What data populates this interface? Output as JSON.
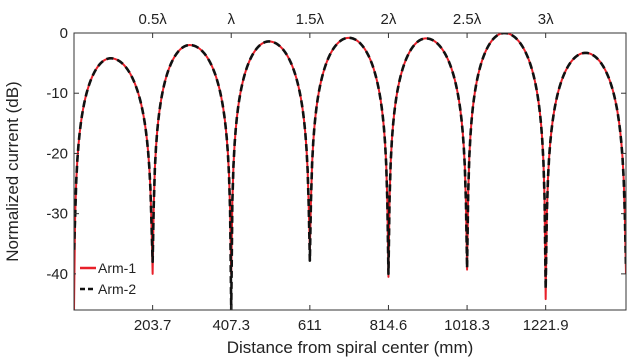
{
  "chart_data": {
    "type": "line",
    "xlabel": "Distance from spiral center (mm)",
    "ylabel": "Normalized current (dB)",
    "xlim": [
      0,
      1430
    ],
    "ylim": [
      -46,
      0
    ],
    "x_ticks": [
      203.7,
      407.3,
      611,
      814.6,
      1018.3,
      1221.9
    ],
    "x_tick_labels": [
      "203.7",
      "407.3",
      "611",
      "814.6",
      "1018.3",
      "1221.9"
    ],
    "y_ticks": [
      0,
      -10,
      -20,
      -30,
      -40
    ],
    "y_tick_labels": [
      "0",
      "-10",
      "-20",
      "-30",
      "-40"
    ],
    "top_axis": {
      "ticks": [
        203.7,
        407.3,
        611,
        814.6,
        1018.3,
        1221.9
      ],
      "labels": [
        "0.5λ",
        "λ",
        "1.5λ",
        "2λ",
        "2.5λ",
        "3λ"
      ]
    },
    "grid": false,
    "legend_position": "bottom-left",
    "lobes": [
      {
        "start": 0,
        "end": 203.7,
        "peak_x": 95,
        "peak_y": -4.2
      },
      {
        "start": 203.7,
        "end": 407.3,
        "peak_x": 300,
        "peak_y": -2.0
      },
      {
        "start": 407.3,
        "end": 611,
        "peak_x": 505,
        "peak_y": -1.4
      },
      {
        "start": 611,
        "end": 814.6,
        "peak_x": 712,
        "peak_y": -0.8
      },
      {
        "start": 814.6,
        "end": 1018.3,
        "peak_x": 912,
        "peak_y": -0.9
      },
      {
        "start": 1018.3,
        "end": 1221.9,
        "peak_x": 1115,
        "peak_y": 0
      },
      {
        "start": 1221.9,
        "end": 1430,
        "peak_x": 1325,
        "peak_y": -3.3
      }
    ],
    "series": [
      {
        "name": "Arm-1",
        "color": "#e8202a",
        "style": "solid",
        "nulls": [
          {
            "x": 0,
            "y": -46
          },
          {
            "x": 203.7,
            "y": -40
          },
          {
            "x": 407.3,
            "y": -40
          },
          {
            "x": 611,
            "y": -36
          },
          {
            "x": 814.6,
            "y": -40.5
          },
          {
            "x": 1018.3,
            "y": -39.3
          },
          {
            "x": 1221.9,
            "y": -44.2
          },
          {
            "x": 1430,
            "y": -40
          }
        ]
      },
      {
        "name": "Arm-2",
        "color": "#111111",
        "style": "dashed",
        "nulls": [
          {
            "x": 0,
            "y": -36
          },
          {
            "x": 203.7,
            "y": -38
          },
          {
            "x": 407.3,
            "y": -46
          },
          {
            "x": 611,
            "y": -37.8
          },
          {
            "x": 814.6,
            "y": -40
          },
          {
            "x": 1018.3,
            "y": -39
          },
          {
            "x": 1221.9,
            "y": -42.5
          },
          {
            "x": 1430,
            "y": -39
          }
        ]
      }
    ]
  }
}
